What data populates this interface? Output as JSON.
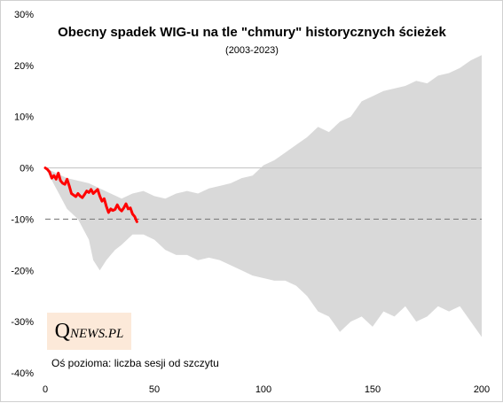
{
  "chart_data": {
    "type": "area",
    "title": "Obecny spadek WIG-u na tle \"chmury\" historycznych  ścieżek",
    "subtitle": "(2003-2023)",
    "annotation": "Oś pozioma: liczba sesji od szczytu",
    "xlim": [
      0,
      200
    ],
    "ylim": [
      -40,
      30
    ],
    "x_ticks": [
      0,
      50,
      100,
      150,
      200
    ],
    "y_ticks": [
      -40,
      -30,
      -20,
      -10,
      0,
      10,
      20,
      30
    ],
    "y_tick_labels": [
      "-40%",
      "-30%",
      "-20%",
      "-10%",
      "0%",
      "10%",
      "20%",
      "30%"
    ],
    "reference_lines": [
      {
        "y": 0,
        "style": "solid",
        "color": "#c8c8c8"
      },
      {
        "y": -10,
        "style": "dashed",
        "color": "#808080"
      }
    ],
    "series": [
      {
        "kind": "band",
        "color": "#d9d9d9",
        "upper": [
          [
            0,
            0
          ],
          [
            5,
            -1
          ],
          [
            10,
            -2
          ],
          [
            15,
            -2.5
          ],
          [
            20,
            -3
          ],
          [
            25,
            -4
          ],
          [
            30,
            -5
          ],
          [
            35,
            -6
          ],
          [
            40,
            -5
          ],
          [
            45,
            -4.5
          ],
          [
            50,
            -5.5
          ],
          [
            55,
            -6
          ],
          [
            60,
            -5
          ],
          [
            65,
            -4.5
          ],
          [
            70,
            -5
          ],
          [
            75,
            -4
          ],
          [
            80,
            -3.5
          ],
          [
            85,
            -3
          ],
          [
            90,
            -2
          ],
          [
            95,
            -1.5
          ],
          [
            100,
            0.5
          ],
          [
            105,
            1.5
          ],
          [
            110,
            3
          ],
          [
            115,
            4.5
          ],
          [
            120,
            6
          ],
          [
            125,
            8
          ],
          [
            130,
            7
          ],
          [
            135,
            9
          ],
          [
            140,
            10
          ],
          [
            145,
            13
          ],
          [
            150,
            14
          ],
          [
            155,
            15
          ],
          [
            160,
            15.5
          ],
          [
            165,
            16
          ],
          [
            170,
            17
          ],
          [
            175,
            16.5
          ],
          [
            180,
            18
          ],
          [
            185,
            18.5
          ],
          [
            190,
            19.5
          ],
          [
            195,
            21
          ],
          [
            200,
            22
          ]
        ],
        "lower": [
          [
            0,
            0
          ],
          [
            5,
            -4
          ],
          [
            10,
            -8
          ],
          [
            15,
            -10
          ],
          [
            20,
            -14
          ],
          [
            22,
            -18
          ],
          [
            25,
            -20
          ],
          [
            28,
            -18
          ],
          [
            30,
            -17
          ],
          [
            32,
            -16
          ],
          [
            35,
            -15
          ],
          [
            40,
            -13
          ],
          [
            45,
            -13
          ],
          [
            50,
            -14
          ],
          [
            55,
            -16
          ],
          [
            60,
            -17
          ],
          [
            65,
            -17
          ],
          [
            70,
            -18
          ],
          [
            75,
            -17.5
          ],
          [
            80,
            -18
          ],
          [
            85,
            -19
          ],
          [
            90,
            -20
          ],
          [
            95,
            -21
          ],
          [
            100,
            -21.5
          ],
          [
            105,
            -22
          ],
          [
            110,
            -22
          ],
          [
            115,
            -23
          ],
          [
            120,
            -25
          ],
          [
            125,
            -28
          ],
          [
            130,
            -29
          ],
          [
            135,
            -32
          ],
          [
            140,
            -30
          ],
          [
            145,
            -29
          ],
          [
            150,
            -31
          ],
          [
            155,
            -28
          ],
          [
            160,
            -29
          ],
          [
            165,
            -27
          ],
          [
            170,
            -30
          ],
          [
            175,
            -29
          ],
          [
            180,
            -27
          ],
          [
            185,
            -28
          ],
          [
            190,
            -27
          ],
          [
            195,
            -30
          ],
          [
            200,
            -33
          ]
        ]
      },
      {
        "kind": "line",
        "color": "#ff0000",
        "points": [
          [
            0,
            0
          ],
          [
            1,
            -0.3
          ],
          [
            2,
            -0.8
          ],
          [
            3,
            -2
          ],
          [
            4,
            -1.5
          ],
          [
            5,
            -2.2
          ],
          [
            6,
            -1
          ],
          [
            7,
            -2.5
          ],
          [
            8,
            -3
          ],
          [
            9,
            -3.2
          ],
          [
            10,
            -2.2
          ],
          [
            11,
            -3.5
          ],
          [
            12,
            -5
          ],
          [
            13,
            -5.3
          ],
          [
            14,
            -5.6
          ],
          [
            15,
            -5
          ],
          [
            16,
            -5.5
          ],
          [
            17,
            -5.8
          ],
          [
            18,
            -5.2
          ],
          [
            19,
            -4.5
          ],
          [
            20,
            -4.8
          ],
          [
            21,
            -4.2
          ],
          [
            22,
            -5
          ],
          [
            23,
            -4.6
          ],
          [
            24,
            -4.2
          ],
          [
            25,
            -5.5
          ],
          [
            26,
            -6.5
          ],
          [
            27,
            -6
          ],
          [
            28,
            -7.5
          ],
          [
            29,
            -8.7
          ],
          [
            30,
            -8
          ],
          [
            31,
            -8.3
          ],
          [
            32,
            -8.1
          ],
          [
            33,
            -7.2
          ],
          [
            34,
            -8
          ],
          [
            35,
            -8.4
          ],
          [
            36,
            -7.8
          ],
          [
            37,
            -7
          ],
          [
            38,
            -8
          ],
          [
            39,
            -7.8
          ],
          [
            40,
            -9
          ],
          [
            41,
            -9.5
          ],
          [
            42,
            -10.5
          ]
        ]
      }
    ]
  },
  "logo": {
    "q": "Q",
    "rest": "NEWS.PL"
  }
}
